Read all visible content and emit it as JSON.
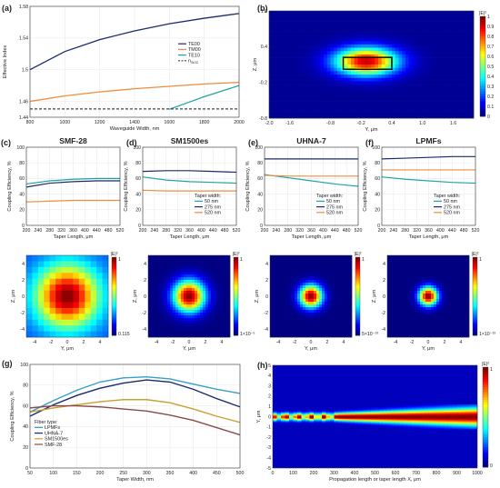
{
  "chart_data": [
    {
      "id": "a",
      "panel_label": "(a)",
      "type": "line",
      "xlabel": "Waveguide Width, nm",
      "ylabel": "Effective Index",
      "xlim": [
        800,
        2000
      ],
      "ylim": [
        1.44,
        1.58
      ],
      "xticks": [
        800,
        1000,
        1200,
        1400,
        1600,
        1800,
        2000
      ],
      "yticks": [
        1.44,
        1.46,
        1.5,
        1.54,
        1.58
      ],
      "yticklabels": [
        "1.44",
        "1.46",
        "1.5",
        "1.54",
        "1.58"
      ],
      "legend_position": "right",
      "series": [
        {
          "name": "TE00",
          "color": "#1a2a6c",
          "x": [
            800,
            1000,
            1200,
            1400,
            1600,
            1800,
            2000
          ],
          "y": [
            1.5,
            1.523,
            1.538,
            1.549,
            1.558,
            1.565,
            1.571
          ]
        },
        {
          "name": "TM00",
          "color": "#f08c3c",
          "x": [
            800,
            1000,
            1200,
            1400,
            1600,
            1800,
            2000
          ],
          "y": [
            1.46,
            1.467,
            1.472,
            1.476,
            1.479,
            1.482,
            1.484
          ]
        },
        {
          "name": "TE10",
          "color": "#20a5a5",
          "x": [
            1600,
            1700,
            1800,
            1900,
            2000
          ],
          "y": [
            1.45,
            1.458,
            1.466,
            1.473,
            1.48
          ]
        },
        {
          "name": "n_SiO2",
          "color": "#444444",
          "dashed": true,
          "x": [
            800,
            2000
          ],
          "y": [
            1.4505,
            1.4505
          ]
        }
      ]
    },
    {
      "id": "b",
      "panel_label": "(b)",
      "type": "heatmap",
      "xlabel": "Y, μm",
      "ylabel": "Z, μm",
      "xlim": [
        -2.0,
        2.0
      ],
      "ylim": [
        -0.8,
        1.0
      ],
      "xticks": [
        -2.0,
        -1.6,
        -0.8,
        -0.2,
        0.4,
        1.0,
        1.6
      ],
      "yticks": [
        -0.8,
        -0.2,
        0.4,
        1.0
      ],
      "colorbar_title": "|E|²",
      "colorbar_ticks": [
        "1",
        "0.9",
        "0.8",
        "0.7",
        "0.6",
        "0.5",
        "0.4",
        "0.3",
        "0.2",
        "0.1",
        "0"
      ],
      "mode_center": [
        -0.1,
        0.15
      ],
      "waveguide_box": {
        "y": [
          -0.55,
          0.4
        ],
        "z": [
          0.02,
          0.22
        ]
      }
    },
    {
      "id": "c",
      "panel_label": "(c)",
      "type": "line",
      "title": "SMF-28",
      "xlabel": "Taper Length, μm",
      "ylabel": "Coupling Efficiency, %",
      "xlim": [
        200,
        520
      ],
      "ylim": [
        0,
        100
      ],
      "xticks": [
        200,
        240,
        280,
        320,
        360,
        400,
        440,
        480,
        520
      ],
      "yticks": [
        0,
        20,
        40,
        60,
        80,
        100
      ],
      "legend_title": "Taper width:",
      "legend_position": "none",
      "series": [
        {
          "name": "50 nm",
          "color": "#20a5a5",
          "x": [
            200,
            280,
            360,
            440,
            520
          ],
          "y": [
            53,
            57,
            59,
            60,
            60
          ]
        },
        {
          "name": "275 nm",
          "color": "#1a2a6c",
          "x": [
            200,
            280,
            360,
            440,
            520
          ],
          "y": [
            49,
            54,
            56,
            57,
            57
          ]
        },
        {
          "name": "520 nm",
          "color": "#f08c3c",
          "x": [
            200,
            280,
            360,
            440,
            520
          ],
          "y": [
            30,
            31,
            32,
            32,
            32
          ]
        }
      ]
    },
    {
      "id": "d",
      "panel_label": "(d)",
      "type": "line",
      "title": "SM1500es",
      "xlabel": "Taper Length, μm",
      "ylabel": "Coupling Efficiency, %",
      "xlim": [
        200,
        520
      ],
      "ylim": [
        0,
        100
      ],
      "xticks": [
        200,
        240,
        280,
        320,
        360,
        400,
        440,
        480,
        520
      ],
      "yticks": [
        0,
        20,
        40,
        60,
        80,
        100
      ],
      "legend_title": "Taper width:",
      "legend_position": "bottom-right",
      "series": [
        {
          "name": "50 nm",
          "color": "#20a5a5",
          "x": [
            200,
            280,
            360,
            440,
            520
          ],
          "y": [
            62,
            58,
            56,
            55,
            54
          ]
        },
        {
          "name": "275 nm",
          "color": "#1a2a6c",
          "x": [
            200,
            280,
            360,
            440,
            520
          ],
          "y": [
            69,
            70,
            70,
            69,
            68
          ]
        },
        {
          "name": "520 nm",
          "color": "#f08c3c",
          "x": [
            200,
            280,
            360,
            440,
            520
          ],
          "y": [
            45,
            44,
            44,
            44,
            44
          ]
        }
      ]
    },
    {
      "id": "e",
      "panel_label": "(e)",
      "type": "line",
      "title": "UHNA-7",
      "xlabel": "Taper Length, μm",
      "ylabel": "Coupling Efficiency, %",
      "xlim": [
        200,
        520
      ],
      "ylim": [
        0,
        100
      ],
      "xticks": [
        200,
        240,
        280,
        320,
        360,
        400,
        440,
        480,
        520
      ],
      "yticks": [
        0,
        20,
        40,
        60,
        80,
        100
      ],
      "legend_title": "Taper width:",
      "legend_position": "bottom-right",
      "series": [
        {
          "name": "50 nm",
          "color": "#20a5a5",
          "x": [
            200,
            280,
            360,
            440,
            520
          ],
          "y": [
            65,
            61,
            57,
            53,
            50
          ]
        },
        {
          "name": "275 nm",
          "color": "#1a2a6c",
          "x": [
            200,
            280,
            360,
            440,
            520
          ],
          "y": [
            85,
            85,
            85,
            85,
            85
          ]
        },
        {
          "name": "520 nm",
          "color": "#f08c3c",
          "x": [
            200,
            280,
            360,
            440,
            520
          ],
          "y": [
            64,
            63,
            63,
            63,
            63
          ]
        }
      ]
    },
    {
      "id": "f",
      "panel_label": "(f)",
      "type": "line",
      "title": "LPMFs",
      "xlabel": "Taper Length, μm",
      "ylabel": "Coupling Efficiency, %",
      "xlim": [
        200,
        520
      ],
      "ylim": [
        0,
        100
      ],
      "xticks": [
        200,
        240,
        280,
        320,
        360,
        400,
        440,
        480,
        520
      ],
      "yticks": [
        0,
        20,
        40,
        60,
        80,
        100
      ],
      "legend_title": "Taper width:",
      "legend_position": "bottom-right",
      "series": [
        {
          "name": "50 nm",
          "color": "#20a5a5",
          "x": [
            200,
            280,
            360,
            440,
            520
          ],
          "y": [
            62,
            59,
            57,
            55,
            54
          ]
        },
        {
          "name": "275 nm",
          "color": "#1a2a6c",
          "x": [
            200,
            280,
            360,
            440,
            520
          ],
          "y": [
            85,
            86,
            87,
            88,
            88
          ]
        },
        {
          "name": "520 nm",
          "color": "#f08c3c",
          "x": [
            200,
            280,
            360,
            440,
            520
          ],
          "y": [
            71,
            71,
            71,
            71,
            71
          ]
        }
      ]
    },
    {
      "id": "c2",
      "type": "heatmap",
      "xlabel": "Y, μm",
      "ylabel": "Z, μm",
      "xlim": [
        -5,
        5
      ],
      "ylim": [
        -5,
        5
      ],
      "xticks": [
        -4,
        -2,
        0,
        2,
        4
      ],
      "yticks": [
        -4,
        -2,
        0,
        2,
        4
      ],
      "colorbar_title": "|E|²",
      "colorbar_max": "1",
      "colorbar_min": "0.115",
      "spot_size": 4.2
    },
    {
      "id": "d2",
      "type": "heatmap",
      "xlabel": "Y, μm",
      "ylabel": "Z, μm",
      "xlim": [
        -5,
        5
      ],
      "ylim": [
        -5,
        5
      ],
      "xticks": [
        -4,
        -2,
        0,
        2,
        4
      ],
      "yticks": [
        -4,
        -2,
        0,
        2,
        4
      ],
      "colorbar_title": "|E|²",
      "colorbar_max": "1",
      "colorbar_min": "1×10⁻⁵",
      "spot_size": 1.6
    },
    {
      "id": "e2",
      "type": "heatmap",
      "xlabel": "Y, μm",
      "ylabel": "Z, μm",
      "xlim": [
        -5,
        5
      ],
      "ylim": [
        -5,
        5
      ],
      "xticks": [
        -4,
        -2,
        0,
        2,
        4
      ],
      "yticks": [
        -4,
        -2,
        0,
        2,
        4
      ],
      "colorbar_title": "|E|²",
      "colorbar_max": "1",
      "colorbar_min": "5×10⁻¹³",
      "spot_size": 1.15
    },
    {
      "id": "f2",
      "type": "heatmap",
      "xlabel": "Y, μm",
      "ylabel": "Z, μm",
      "xlim": [
        -5,
        5
      ],
      "ylim": [
        -5,
        5
      ],
      "xticks": [
        -4,
        -2,
        0,
        2,
        4
      ],
      "yticks": [
        -4,
        -2,
        0,
        2,
        4
      ],
      "colorbar_title": "|E|²",
      "colorbar_max": "1",
      "colorbar_min": "1×10⁻¹³",
      "spot_size": 0.95
    },
    {
      "id": "g",
      "panel_label": "(g)",
      "type": "line",
      "xlabel": "Taper Width, nm",
      "ylabel": "Coupling Efficiency, %",
      "xlim": [
        50,
        500
      ],
      "ylim": [
        0,
        100
      ],
      "xticks": [
        50,
        100,
        150,
        200,
        250,
        300,
        350,
        400,
        450,
        500
      ],
      "yticks": [
        0,
        20,
        40,
        60,
        80,
        100
      ],
      "legend_title": "Fiber type:",
      "legend_position": "bottom-left",
      "series": [
        {
          "name": "LPMFs",
          "color": "#3a9fc8",
          "x": [
            50,
            100,
            150,
            200,
            250,
            300,
            350,
            400,
            450,
            500
          ],
          "y": [
            54,
            65,
            75,
            83,
            87,
            88,
            86,
            81,
            76,
            72
          ]
        },
        {
          "name": "UHNA-7",
          "color": "#1a2a6c",
          "x": [
            50,
            100,
            150,
            200,
            250,
            300,
            350,
            400,
            450,
            500
          ],
          "y": [
            50,
            61,
            70,
            77,
            82,
            85,
            83,
            76,
            67,
            59
          ]
        },
        {
          "name": "SM1500es",
          "color": "#c8a030",
          "x": [
            50,
            100,
            150,
            200,
            250,
            300,
            350,
            400,
            450,
            500
          ],
          "y": [
            54,
            58,
            61,
            64,
            66,
            66,
            63,
            57,
            50,
            44
          ]
        },
        {
          "name": "SMF-28",
          "color": "#8b4a4a",
          "x": [
            50,
            100,
            150,
            200,
            250,
            300,
            350,
            400,
            450,
            500
          ],
          "y": [
            58,
            60,
            60,
            59,
            57,
            55,
            51,
            46,
            39,
            32
          ]
        }
      ]
    },
    {
      "id": "h",
      "panel_label": "(h)",
      "type": "heatmap",
      "xlabel": "Propagation length or taper length X, μm",
      "ylabel": "Y, μm",
      "xlim": [
        0,
        1000
      ],
      "ylim": [
        -5,
        5
      ],
      "xticks": [
        0,
        100,
        200,
        300,
        400,
        500,
        600,
        700,
        800,
        900,
        1000
      ],
      "yticks": [
        5,
        4,
        3,
        2,
        1,
        0,
        -1,
        -2,
        -3,
        -4,
        -5
      ],
      "colorbar_title": "|E|²",
      "colorbar_max": "1",
      "colorbar_min": "0"
    }
  ]
}
